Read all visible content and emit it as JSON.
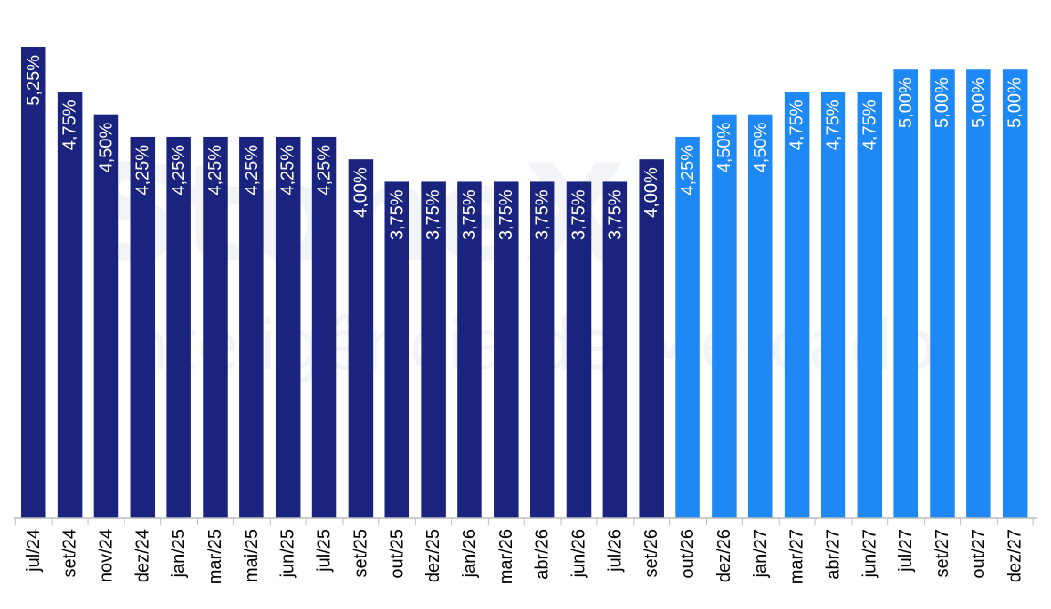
{
  "chart_data": {
    "type": "bar",
    "categories": [
      "jul/24",
      "set/24",
      "nov/24",
      "dez/24",
      "jan/25",
      "mar/25",
      "mai/25",
      "jun/25",
      "jul/25",
      "set/25",
      "out/25",
      "dez/25",
      "jan/26",
      "mar/26",
      "abr/26",
      "jun/26",
      "jul/26",
      "set/26",
      "out/26",
      "dez/26",
      "jan/27",
      "mar/27",
      "abr/27",
      "jun/27",
      "jul/27",
      "set/27",
      "out/27",
      "dez/27"
    ],
    "values": [
      5.25,
      4.75,
      4.5,
      4.25,
      4.25,
      4.25,
      4.25,
      4.25,
      4.25,
      4.0,
      3.75,
      3.75,
      3.75,
      3.75,
      3.75,
      3.75,
      3.75,
      4.0,
      4.25,
      4.5,
      4.5,
      4.75,
      4.75,
      4.75,
      5.0,
      5.0,
      5.0,
      5.0
    ],
    "data_labels": [
      "5,25%",
      "4,75%",
      "4,50%",
      "4,25%",
      "4,25%",
      "4,25%",
      "4,25%",
      "4,25%",
      "4,25%",
      "4,00%",
      "3,75%",
      "3,75%",
      "3,75%",
      "3,75%",
      "3,75%",
      "3,75%",
      "3,75%",
      "4,00%",
      "4,25%",
      "4,50%",
      "4,50%",
      "4,75%",
      "4,75%",
      "4,75%",
      "5,00%",
      "5,00%",
      "5,00%",
      "5,00%"
    ],
    "segments": [
      {
        "from": 0,
        "to": 17,
        "color": "#1a237e"
      },
      {
        "from": 18,
        "to": 27,
        "color": "#1e88f5"
      }
    ],
    "ylim": [
      0,
      5.25
    ],
    "grid": false,
    "legend": "none",
    "xlabel": "",
    "ylabel": "",
    "title": ""
  },
  "watermark": {
    "line1": "StoneX",
    "line2": "Inteligência de Mercado"
  },
  "colors": {
    "historical": "#1a237e",
    "forecast": "#1e88f5",
    "axis": "#bdbdbd"
  }
}
